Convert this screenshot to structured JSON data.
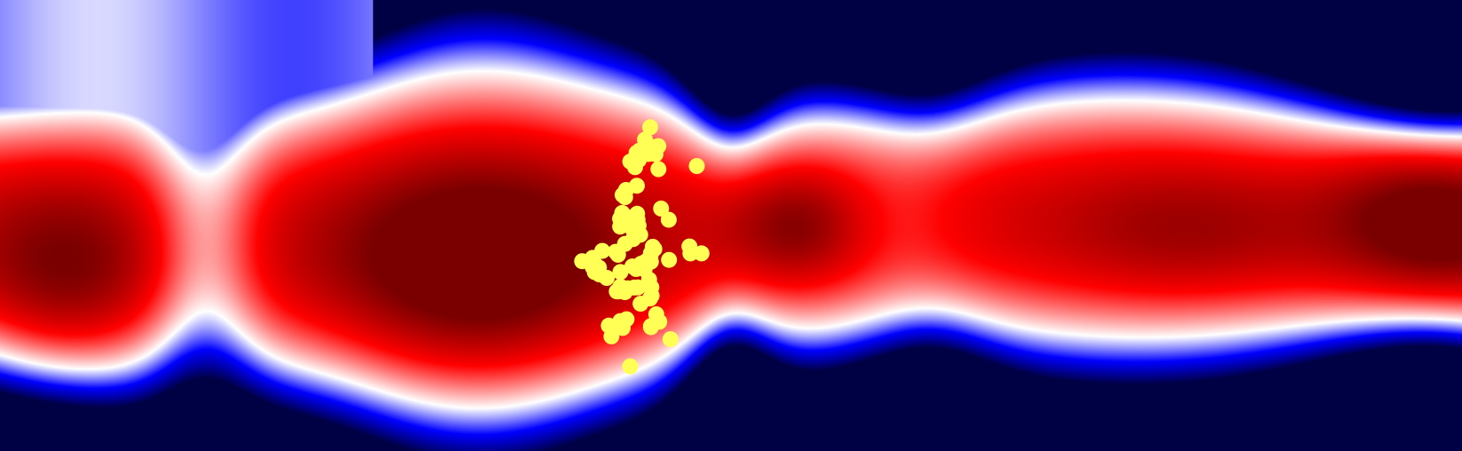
{
  "scene": {
    "description_kind": "heatmap",
    "colormap": [
      "#000044",
      "#0000ff",
      "#ffffff",
      "#ff0000",
      "#7a0000"
    ],
    "point_color": "#ffff55",
    "point_count": 85
  }
}
